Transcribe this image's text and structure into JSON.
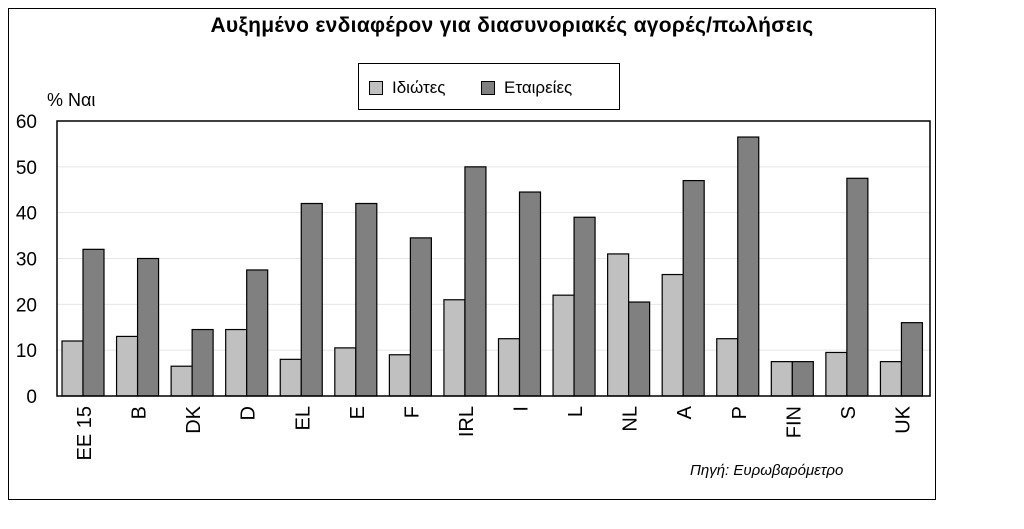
{
  "chart_data": {
    "type": "bar",
    "title": "Αυξημένο ενδιαφέρον για διασυνοριακές αγορές/πωλήσεις",
    "ylabel": "% Ναι",
    "ylim": [
      0,
      60
    ],
    "yticks": [
      0,
      10,
      20,
      30,
      40,
      50,
      60
    ],
    "grid": true,
    "legend_position": "top-center",
    "categories": [
      "EE 15",
      "B",
      "DK",
      "D",
      "EL",
      "E",
      "F",
      "IRL",
      "I",
      "L",
      "NL",
      "A",
      "P",
      "FIN",
      "S",
      "UK"
    ],
    "series": [
      {
        "name": "Ιδιώτες",
        "color": "#c0c0c0",
        "values": [
          12,
          13,
          6.5,
          14.5,
          8,
          10.5,
          9,
          21,
          12.5,
          22,
          31,
          26.5,
          12.5,
          7.5,
          9.5,
          7.5
        ]
      },
      {
        "name": "Εταιρείες",
        "color": "#808080",
        "values": [
          32,
          30,
          14.5,
          27.5,
          42,
          42,
          34.5,
          50,
          44.5,
          39,
          20.5,
          47,
          56.5,
          7.5,
          47.5,
          16
        ]
      }
    ],
    "source": "Πηγή: Ευρωβαρόμετρο"
  }
}
